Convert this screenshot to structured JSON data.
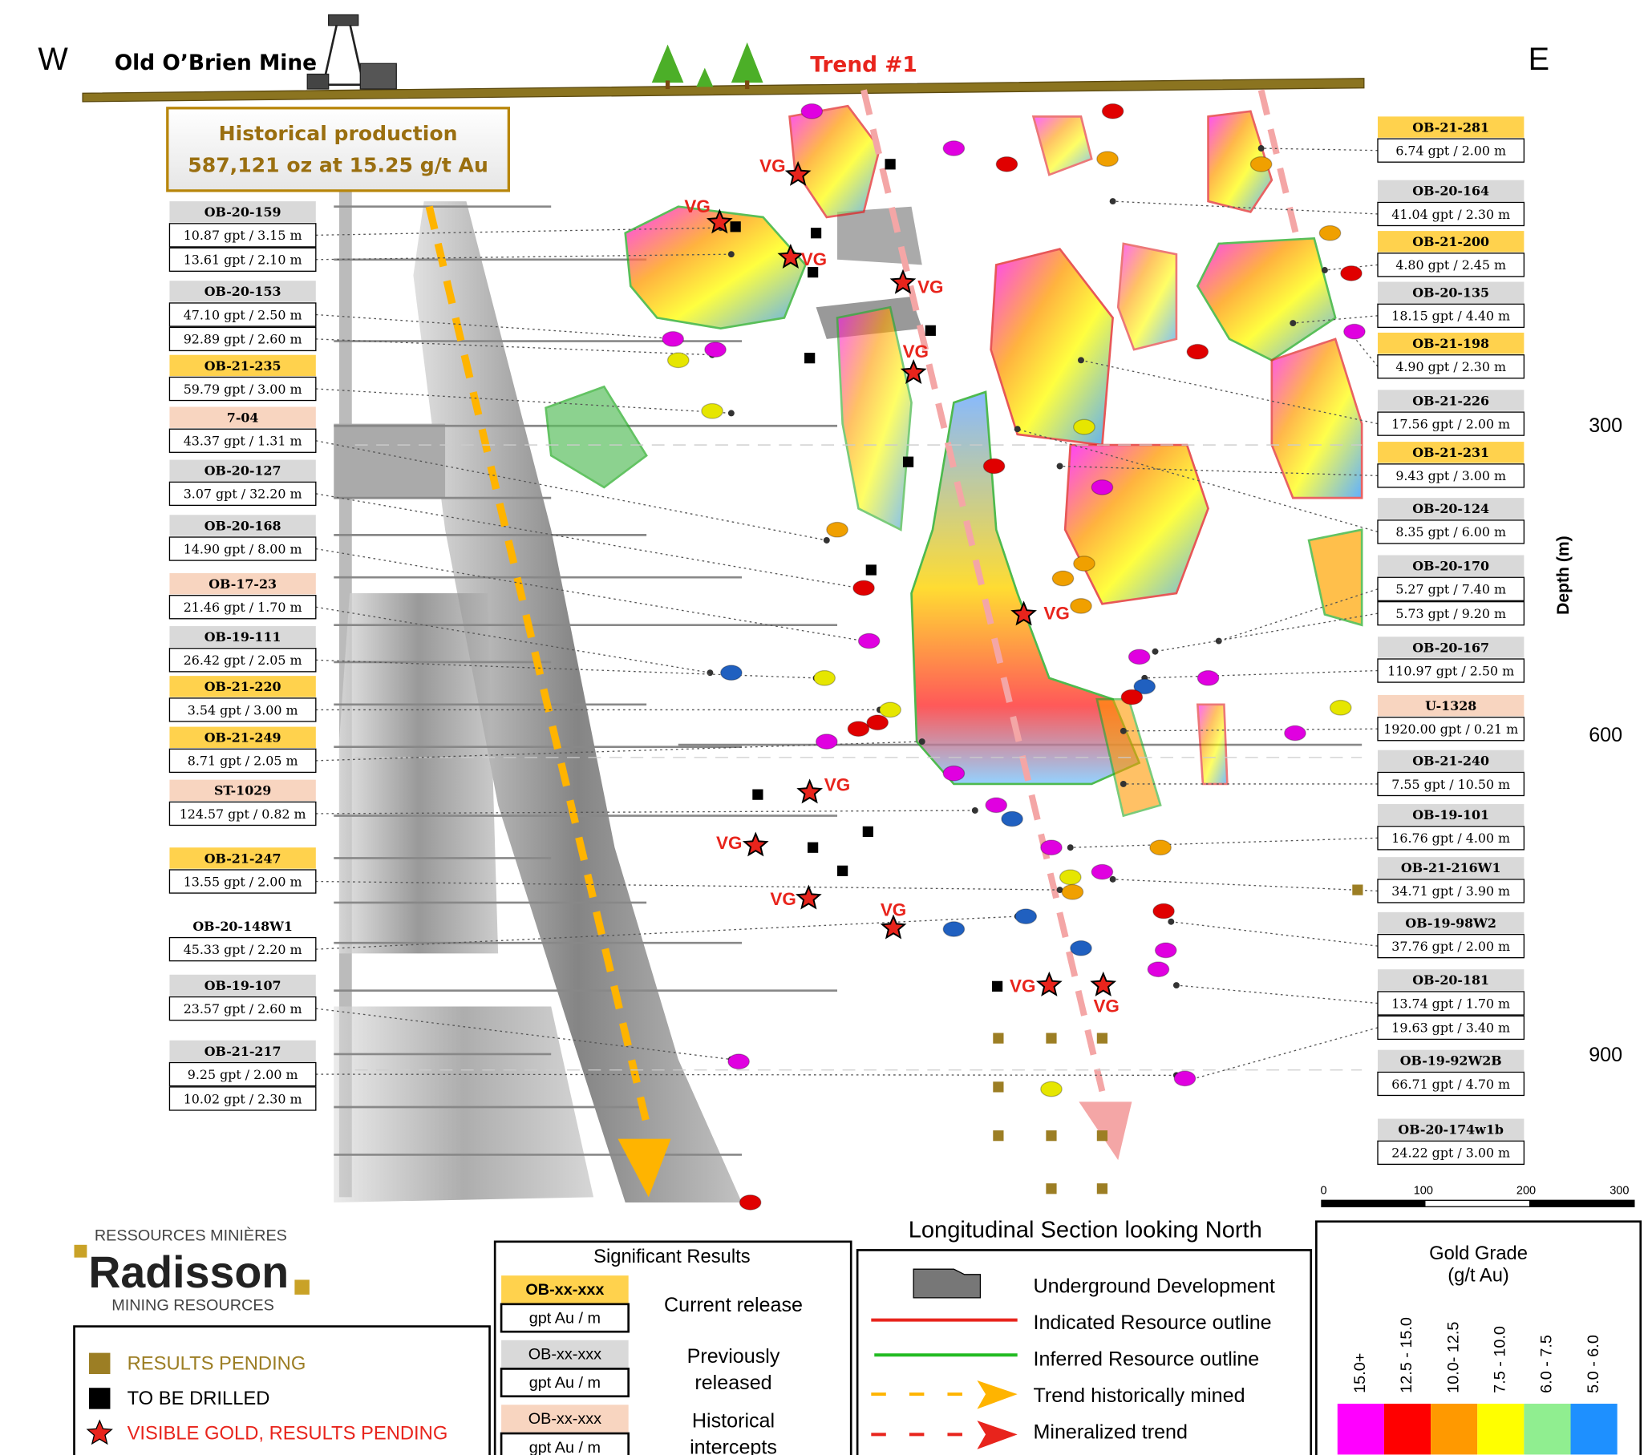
{
  "header": {
    "west": "W",
    "east": "E",
    "mine": "Old O’Brien Mine",
    "trend": "Trend #1"
  },
  "production": {
    "line1": "Historical production",
    "line2": "587,121 oz at 15.25 g/t Au"
  },
  "holes_left": [
    {
      "id": "OB-20-159",
      "color": "#d9d9d9",
      "results": [
        "10.87 gpt / 3.15 m",
        "13.61 gpt / 2.10 m"
      ]
    },
    {
      "id": "OB-20-153",
      "color": "#d9d9d9",
      "results": [
        "47.10 gpt / 2.50 m",
        "92.89 gpt / 2.60 m"
      ]
    },
    {
      "id": "OB-21-235",
      "color": "#ffd24d",
      "results": [
        "59.79 gpt / 3.00 m"
      ]
    },
    {
      "id": "7-04",
      "color": "#f8d5c0",
      "results": [
        "43.37 gpt / 1.31 m"
      ]
    },
    {
      "id": "OB-20-127",
      "color": "#d9d9d9",
      "results": [
        "3.07 gpt / 32.20 m"
      ]
    },
    {
      "id": "OB-20-168",
      "color": "#d9d9d9",
      "results": [
        "14.90 gpt / 8.00 m"
      ]
    },
    {
      "id": "OB-17-23",
      "color": "#f8d5c0",
      "results": [
        "21.46 gpt / 1.70 m"
      ]
    },
    {
      "id": "OB-19-111",
      "color": "#d9d9d9",
      "results": [
        "26.42 gpt / 2.05 m"
      ]
    },
    {
      "id": "OB-21-220",
      "color": "#ffd24d",
      "results": [
        "3.54 gpt / 3.00 m"
      ]
    },
    {
      "id": "OB-21-249",
      "color": "#ffd24d",
      "results": [
        "8.71 gpt / 2.05 m"
      ]
    },
    {
      "id": "ST-1029",
      "color": "#f8d5c0",
      "results": [
        "124.57 gpt / 0.82 m"
      ]
    },
    {
      "id": "OB-21-247",
      "color": "#ffd24d",
      "results": [
        "13.55 gpt / 2.00 m"
      ]
    },
    {
      "id": "OB-20-148W1",
      "color": "#ffffff",
      "results": [
        "45.33 gpt / 2.20 m"
      ]
    },
    {
      "id": "OB-19-107",
      "color": "#d9d9d9",
      "results": [
        "23.57 gpt / 2.60 m"
      ]
    },
    {
      "id": "OB-21-217",
      "color": "#d9d9d9",
      "results": [
        "9.25 gpt / 2.00 m",
        "10.02 gpt / 2.30 m"
      ]
    }
  ],
  "holes_right": [
    {
      "id": "OB-21-281",
      "color": "#ffd24d",
      "results": [
        "6.74 gpt / 2.00 m"
      ]
    },
    {
      "id": "OB-20-164",
      "color": "#d9d9d9",
      "results": [
        "41.04 gpt / 2.30 m"
      ]
    },
    {
      "id": "OB-21-200",
      "color": "#ffd24d",
      "results": [
        "4.80 gpt / 2.45 m"
      ]
    },
    {
      "id": "OB-20-135",
      "color": "#d9d9d9",
      "results": [
        "18.15 gpt / 4.40 m"
      ]
    },
    {
      "id": "OB-21-198",
      "color": "#ffd24d",
      "results": [
        "4.90 gpt / 2.30 m"
      ]
    },
    {
      "id": "OB-21-226",
      "color": "#d9d9d9",
      "results": [
        "17.56 gpt / 2.00 m"
      ]
    },
    {
      "id": "OB-21-231",
      "color": "#ffd24d",
      "results": [
        "9.43 gpt / 3.00 m"
      ]
    },
    {
      "id": "OB-20-124",
      "color": "#d9d9d9",
      "results": [
        "8.35 gpt / 6.00 m"
      ]
    },
    {
      "id": "OB-20-170",
      "color": "#d9d9d9",
      "results": [
        "5.27 gpt / 7.40 m",
        "5.73 gpt / 9.20 m"
      ]
    },
    {
      "id": "OB-20-167",
      "color": "#d9d9d9",
      "results": [
        "110.97 gpt / 2.50 m"
      ]
    },
    {
      "id": "U-1328",
      "color": "#f8d5c0",
      "results": [
        "1920.00 gpt / 0.21 m"
      ]
    },
    {
      "id": "OB-21-240",
      "color": "#d9d9d9",
      "results": [
        "7.55 gpt / 10.50 m"
      ]
    },
    {
      "id": "OB-19-101",
      "color": "#d9d9d9",
      "results": [
        "16.76 gpt / 4.00 m"
      ]
    },
    {
      "id": "OB-21-216W1",
      "color": "#d9d9d9",
      "results": [
        "34.71 gpt / 3.90 m"
      ]
    },
    {
      "id": "OB-19-98W2",
      "color": "#d9d9d9",
      "results": [
        "37.76 gpt / 2.00 m"
      ]
    },
    {
      "id": "OB-20-181",
      "color": "#d9d9d9",
      "results": [
        "13.74 gpt / 1.70 m",
        "19.63 gpt / 3.40 m"
      ]
    },
    {
      "id": "OB-19-92W2B",
      "color": "#d9d9d9",
      "results": [
        "66.71 gpt / 4.70 m"
      ]
    },
    {
      "id": "OB-20-174w1b",
      "color": "#d9d9d9",
      "results": [
        "24.22 gpt / 3.00 m"
      ]
    }
  ],
  "vg_label": "VG",
  "depth": {
    "title": "Depth (m)",
    "ticks": [
      "300",
      "600",
      "900"
    ]
  },
  "scale": [
    "0",
    "100",
    "200",
    "300"
  ],
  "logo": {
    "top": "RESSOURCES MINIÈRES",
    "name": "Radisson",
    "bottom": "MINING RESOURCES"
  },
  "status_legend": [
    {
      "label": "RESULTS PENDING",
      "color": "#9c7e24"
    },
    {
      "label": "TO BE DRILLED",
      "color": "#000000"
    },
    {
      "label": "VISIBLE GOLD, RESULTS PENDING",
      "color": "#e8241c"
    }
  ],
  "significant": {
    "title": "Significant Results",
    "box_id": "OB-xx-xxx",
    "box_result": "gpt Au / m",
    "items": [
      {
        "label": "Current release",
        "color": "#ffd24d"
      },
      {
        "label": "Previously released",
        "color": "#d9d9d9"
      },
      {
        "label": "Historical intercepts",
        "color": "#f8d5c0"
      }
    ]
  },
  "section": {
    "title": "Longitudinal Section looking North",
    "items": [
      "Underground Development",
      "Indicated Resource outline",
      "Inferred Resource outline",
      "Trend historically mined",
      "Mineralized trend"
    ]
  },
  "grade": {
    "title": "Gold Grade",
    "unit": "(g/t Au)",
    "bins": [
      {
        "label": "15.0+",
        "color": "#ff00ff"
      },
      {
        "label": "12.5 - 15.0",
        "color": "#ff0000"
      },
      {
        "label": "10.0- 12.5",
        "color": "#ff9900"
      },
      {
        "label": "7.5 - 10.0",
        "color": "#ffff00"
      },
      {
        "label": "6.0 - 7.5",
        "color": "#90ee90"
      },
      {
        "label": "5.0 - 6.0",
        "color": "#1e90ff"
      }
    ]
  }
}
